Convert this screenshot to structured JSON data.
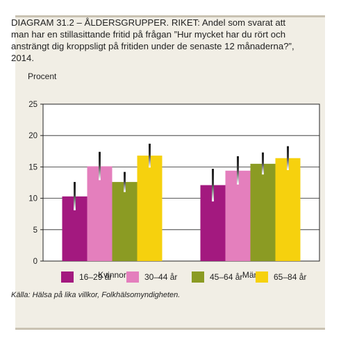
{
  "chart_data": {
    "type": "bar",
    "title": "DIAGRAM 31.2 – ÅLDERSGRUPPER. RIKET: Andel som svarat att man har en stillasittande fritid på frågan ”Hur mycket har du rört och ansträngt dig kroppsligt på fritiden under de senaste 12 månaderna?”, 2014.",
    "ylabel": "Procent",
    "xlabel": "",
    "ylim": [
      0,
      25
    ],
    "yticks": [
      "0",
      "5",
      "10",
      "15",
      "20",
      "25"
    ],
    "grid": true,
    "categories": [
      "Kvinnor",
      "Män"
    ],
    "series": [
      {
        "name": "16–29 år",
        "color": "#a3197f",
        "values": [
          10.3,
          12.1
        ],
        "error_low": [
          8.1,
          9.5
        ],
        "error_high": [
          12.6,
          14.7
        ]
      },
      {
        "name": "30–44 år",
        "color": "#e47fbd",
        "values": [
          15.1,
          14.4
        ],
        "error_low": [
          12.9,
          12.2
        ],
        "error_high": [
          17.4,
          16.7
        ]
      },
      {
        "name": "45–64 år",
        "color": "#8b9b23",
        "values": [
          12.6,
          15.5
        ],
        "error_low": [
          11.0,
          13.8
        ],
        "error_high": [
          14.2,
          17.3
        ]
      },
      {
        "name": "65–84 år",
        "color": "#f6d10e",
        "values": [
          16.8,
          16.4
        ],
        "error_low": [
          14.9,
          14.5
        ],
        "error_high": [
          18.7,
          18.3
        ]
      }
    ],
    "legend_position": "bottom"
  },
  "source": "Källa: Hälsa på lika villkor, Folkhälsomyndigheten."
}
